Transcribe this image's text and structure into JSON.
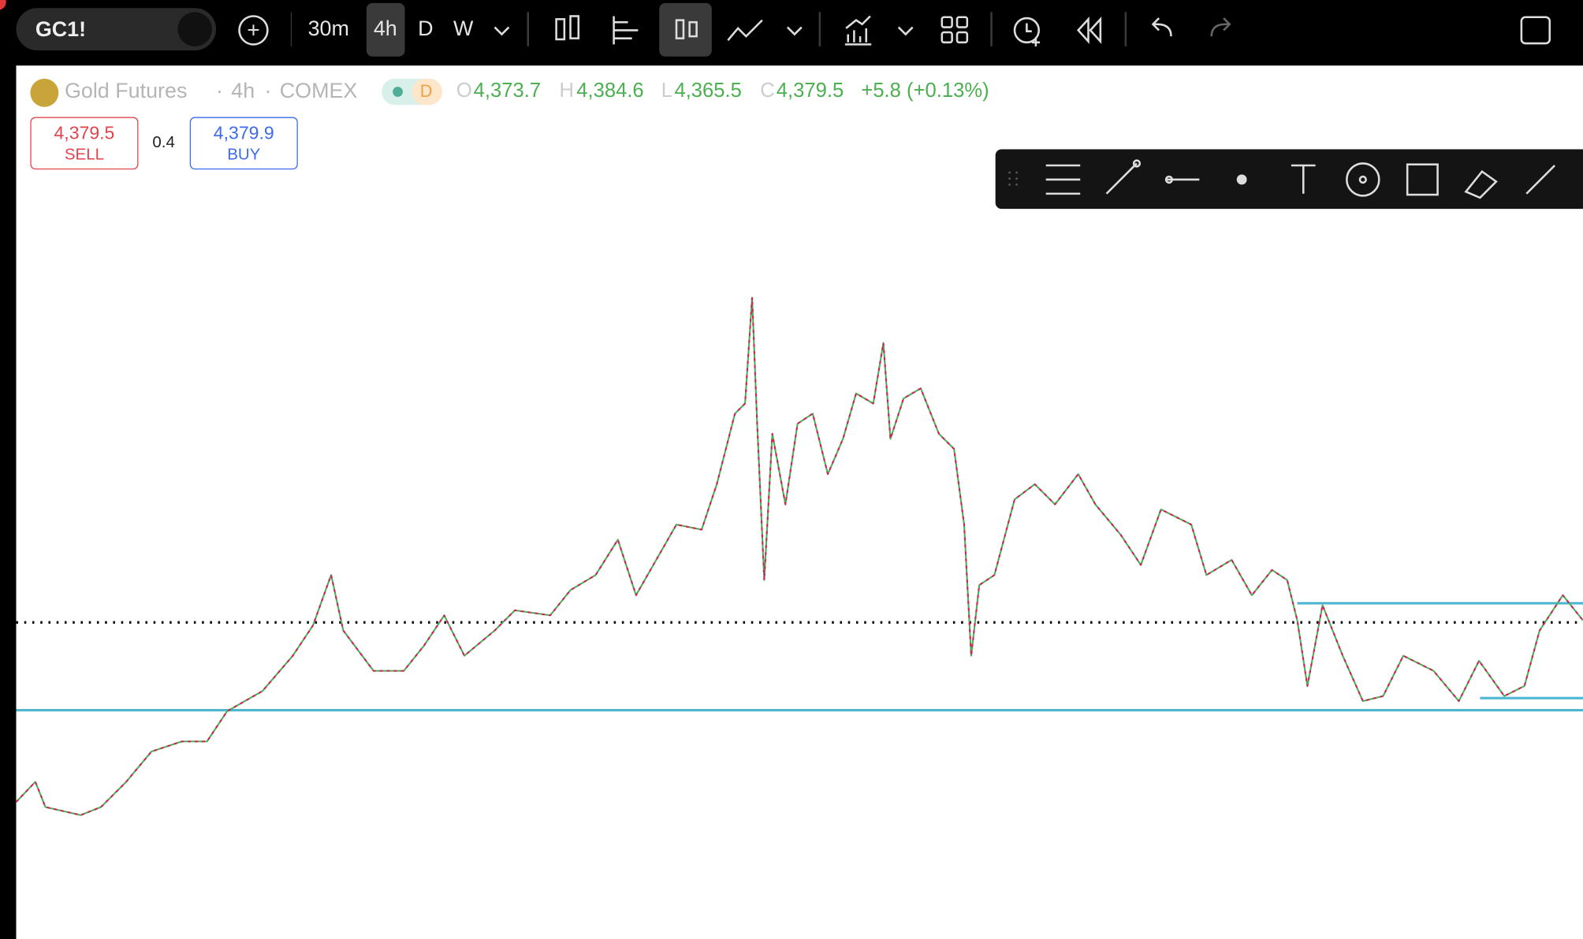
{
  "toolbar": {
    "symbol": "GC1!",
    "intervals": [
      "30m",
      "4h",
      "D",
      "W"
    ]
  },
  "legend": {
    "name": "Gold Futures",
    "separator": "·",
    "interval": "4h",
    "exchange": "COMEX",
    "badge": "D",
    "open_label": "O",
    "open": "4,373.7",
    "high_label": "H",
    "high": "4,384.6",
    "low_label": "L",
    "low": "4,365.5",
    "close_label": "C",
    "close": "4,379.5",
    "change": "+5.8 (+0.13%)"
  },
  "trade": {
    "sell_price": "4,379.5",
    "sell_label": "SELL",
    "spread": "0.4",
    "buy_price": "4,379.9",
    "buy_label": "BUY"
  }
}
